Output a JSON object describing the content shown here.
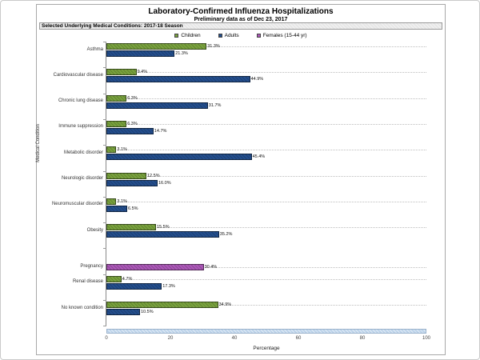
{
  "title": "Laboratory-Confirmed Influenza Hospitalizations",
  "subtitle": "Preliminary data as of Dec 23, 2017",
  "panel_header": "Selected Underlying Medical Conditions: 2017-18 Season",
  "colors": {
    "children": "#79A23D",
    "adults": "#234E8D",
    "females": "#AC58B8",
    "range_bar": "#BCD3EA",
    "header_bg": "#E7E7E7"
  },
  "chart_data": {
    "type": "bar",
    "orientation": "horizontal",
    "title": "Laboratory-Confirmed Influenza Hospitalizations",
    "subtitle": "Preliminary data as of Dec 23, 2017",
    "xlabel": "Percentage",
    "ylabel": "Medical Condition",
    "xlim": [
      0,
      100
    ],
    "xticks": [
      0,
      20,
      40,
      60,
      80,
      100
    ],
    "grid": "dotted-horizontal",
    "legend_position": "top-center",
    "value_label_suffix": "%",
    "categories": [
      "Asthma",
      "Cardiovascular disease",
      "Chronic lung disease",
      "Immune suppression",
      "Metabolic disorder",
      "Neurologic disorder",
      "Neuromuscular disorder",
      "Obesity",
      "Pregnancy",
      "Renal disease",
      "No known condition"
    ],
    "series": [
      {
        "name": "Children",
        "color": "#79A23D",
        "values": [
          31.3,
          9.4,
          6.3,
          6.3,
          3.1,
          12.5,
          3.1,
          15.5,
          null,
          4.7,
          34.9
        ]
      },
      {
        "name": "Adults",
        "color": "#234E8D",
        "values": [
          21.3,
          44.9,
          31.7,
          14.7,
          45.4,
          16.0,
          6.5,
          35.2,
          null,
          17.3,
          10.5
        ]
      },
      {
        "name": "Females (15-44 yr)",
        "color": "#AC58B8",
        "values": [
          null,
          null,
          null,
          null,
          null,
          null,
          null,
          null,
          30.4,
          null,
          null
        ]
      }
    ]
  }
}
